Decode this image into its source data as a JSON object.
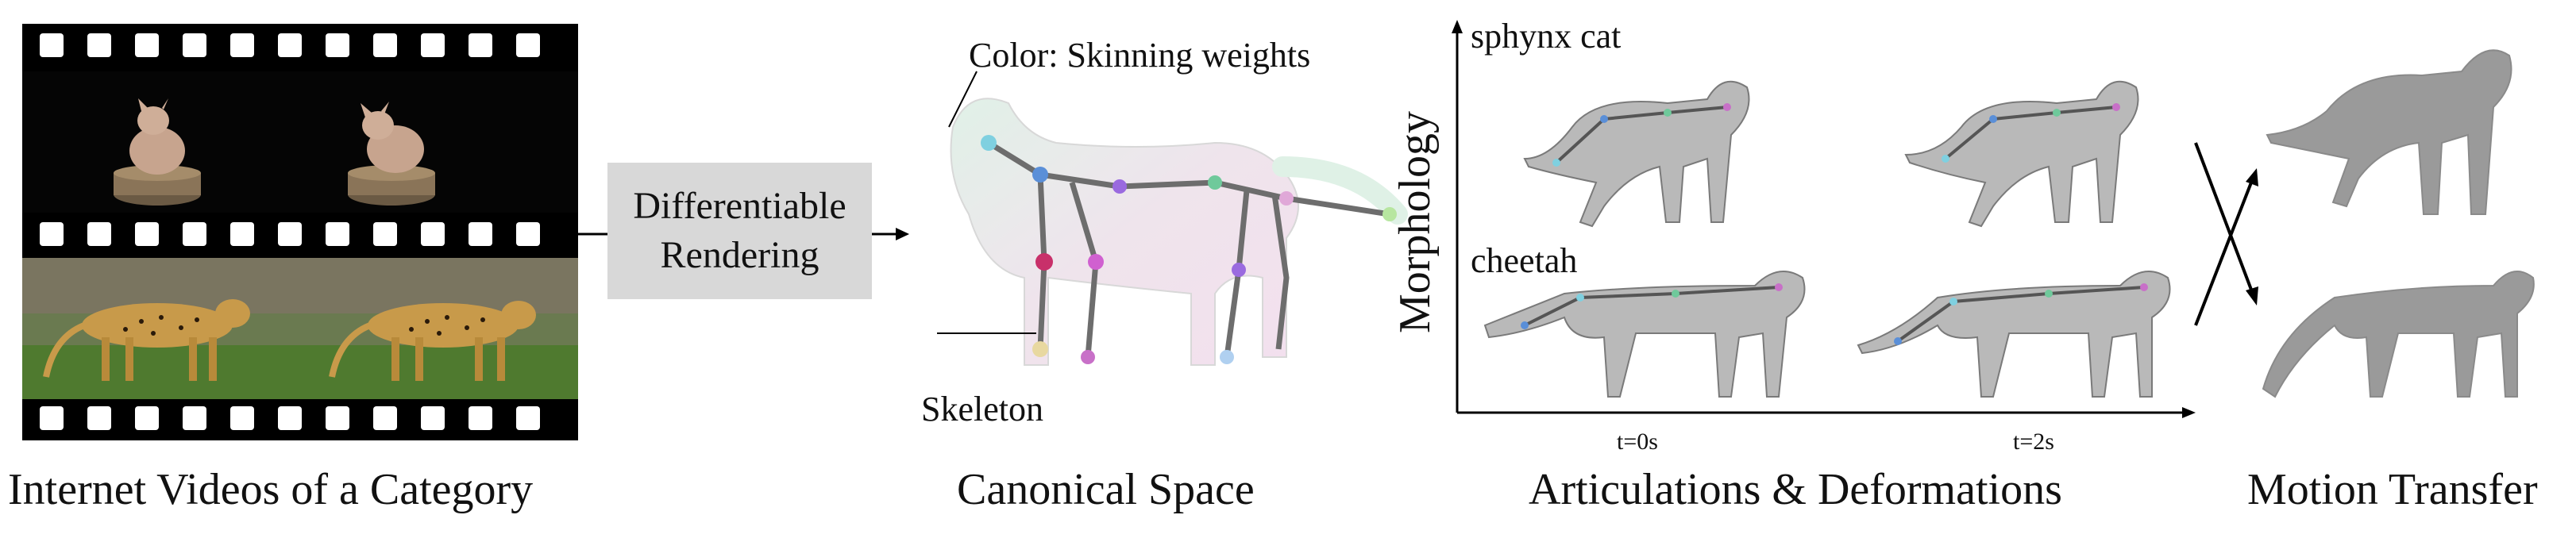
{
  "panels": {
    "videos": {
      "caption": "Internet Videos of a Category"
    },
    "rendering": {
      "line1": "Differentiable",
      "line2": "Rendering"
    },
    "canonical": {
      "caption": "Canonical Space",
      "color_label": "Color: Skinning weights",
      "skeleton_label": "Skeleton"
    },
    "articulations": {
      "caption": "Articulations & Deformations",
      "y_axis_label": "Morphology",
      "rows": [
        "sphynx cat",
        "cheetah"
      ],
      "times": [
        "t=0s",
        "t=2s"
      ]
    },
    "transfer": {
      "caption": "Motion Transfer"
    }
  },
  "colors": {
    "film": "#000000",
    "box": "#d8d8d8",
    "mesh_wire": "#7a7a7a",
    "mesh_fill": "#b9b9b9",
    "gray_shape": "#9a9a9a",
    "cheetah_fur": "#c89a4a",
    "grass": "#4f7a2f",
    "skin": "#c7a48e"
  }
}
